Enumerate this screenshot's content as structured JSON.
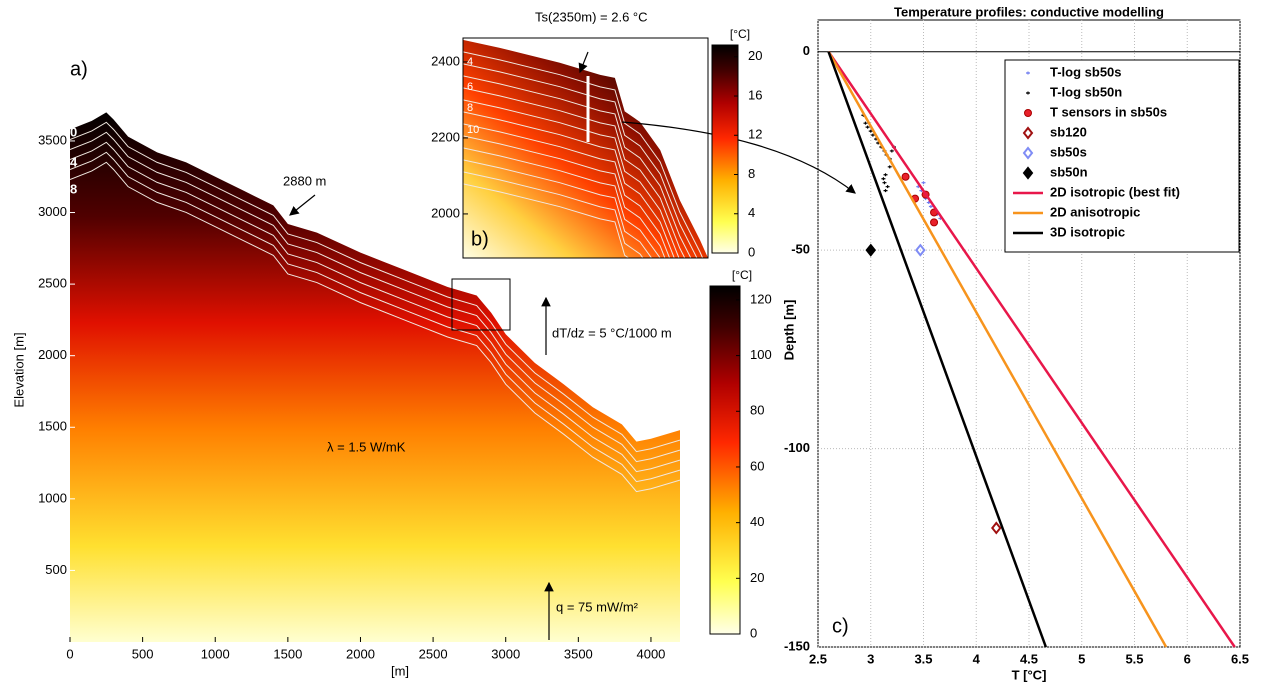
{
  "chart_data": [
    {
      "type": "heatmap",
      "label": "a)",
      "xlabel": "[m]",
      "ylabel": "Elevation [m]",
      "xlim": [
        0,
        4200
      ],
      "ylim": [
        0,
        3800
      ],
      "xticks": [
        0,
        500,
        1000,
        1500,
        2000,
        2500,
        3000,
        3500,
        4000
      ],
      "yticks": [
        500,
        1000,
        1500,
        2000,
        2500,
        3000,
        3500
      ],
      "surface": {
        "x": [
          0,
          150,
          250,
          300,
          400,
          600,
          800,
          1000,
          1200,
          1400,
          1500,
          1700,
          2000,
          2300,
          2600,
          2800,
          2900,
          3000,
          3200,
          3400,
          3600,
          3800,
          3900,
          4000,
          4200
        ],
        "y": [
          3580,
          3640,
          3700,
          3650,
          3530,
          3420,
          3350,
          3250,
          3150,
          3050,
          2920,
          2860,
          2720,
          2600,
          2480,
          2420,
          2300,
          2150,
          1950,
          1800,
          1640,
          1520,
          1400,
          1420,
          1480
        ]
      },
      "isotherm_labels": [
        "0",
        "4",
        "8"
      ],
      "annotations": [
        "2880 m",
        "dT/dz  = 5 °C/1000 m",
        "λ = 1.5 W/mK",
        "q = 75 mW/m²"
      ],
      "colorbar": {
        "unit": "[°C]",
        "lim": [
          0,
          125
        ],
        "ticks": [
          0,
          20,
          40,
          60,
          80,
          100,
          120
        ]
      }
    },
    {
      "type": "heatmap",
      "label": "b)",
      "xlim": [
        2600,
        3000
      ],
      "ylim": [
        1884,
        2463
      ],
      "yticks": [
        2000,
        2200,
        2400
      ],
      "surface": {
        "x": [
          2600,
          2660,
          2758,
          2824,
          2848,
          2864,
          2889,
          2922,
          2954,
          2987,
          3000
        ],
        "y": [
          2458,
          2437,
          2398,
          2366,
          2358,
          2270,
          2242,
          2168,
          2036,
          1931,
          1884
        ]
      },
      "isotherm_labels": [
        "4",
        "6",
        "8",
        "10"
      ],
      "annotations": [
        "Ts(2350m) = 2.6 °C"
      ],
      "colorbar": {
        "unit": "[°C]",
        "lim": [
          0,
          21.2
        ],
        "ticks": [
          0,
          4,
          8,
          12,
          16,
          20
        ]
      }
    },
    {
      "type": "line",
      "title": "Temperature profiles: conductive modelling",
      "label": "c)",
      "xlabel": "T [°C]",
      "ylabel": "Depth [m]",
      "xlim": [
        2.5,
        6.5
      ],
      "ylim": [
        -150,
        8
      ],
      "xticks": [
        2.5,
        3,
        3.5,
        4,
        4.5,
        5,
        5.5,
        6,
        6.5
      ],
      "yticks": [
        0,
        -50,
        -100,
        -150
      ],
      "grid": true,
      "legend": "upper right",
      "series": [
        {
          "name": "T-log sb50s",
          "color": "#6f7cf0",
          "style": "dot",
          "x": [
            3.45,
            3.48,
            3.5,
            3.52,
            3.55,
            3.57,
            3.6,
            3.63,
            3.66,
            3.5
          ],
          "values": [
            -34,
            -35,
            -36,
            -37,
            -38,
            -39,
            -40,
            -41,
            -42,
            -33
          ]
        },
        {
          "name": "T-log sb50n",
          "color": "#000000",
          "style": "dot",
          "x": [
            2.93,
            2.95,
            2.97,
            3.0,
            3.02,
            3.05,
            3.07,
            3.1,
            3.13,
            3.15,
            3.18,
            3.2,
            3.22,
            3.18,
            3.14,
            3.12,
            3.13,
            3.16,
            3.14
          ],
          "values": [
            -16,
            -18,
            -19,
            -20,
            -21,
            -22,
            -23,
            -24,
            -25,
            -26,
            -27,
            -25,
            -24,
            -29,
            -31,
            -32,
            -33,
            -34,
            -35
          ]
        },
        {
          "name": "T sensors in sb50s",
          "color": "#e8202a",
          "style": "circle",
          "x": [
            3.33,
            3.42,
            3.52,
            3.6,
            3.6
          ],
          "values": [
            -31.5,
            -37,
            -36,
            -40.5,
            -43
          ]
        },
        {
          "name": "sb120",
          "color": "#a01010",
          "style": "diamond",
          "x": [
            4.19
          ],
          "values": [
            -120
          ]
        },
        {
          "name": "sb50s",
          "color": "#7f8cf5",
          "style": "diamond",
          "x": [
            3.47
          ],
          "values": [
            -50
          ]
        },
        {
          "name": "sb50n",
          "color": "#000000",
          "style": "filled-diamond",
          "x": [
            3.0
          ],
          "values": [
            -50
          ]
        },
        {
          "name": "2D isotropic (best fit)",
          "color": "#e8174a",
          "style": "line",
          "x": [
            2.6,
            6.45
          ],
          "values": [
            0,
            -150
          ]
        },
        {
          "name": "2D anisotropic",
          "color": "#f7941d",
          "style": "line",
          "x": [
            2.6,
            5.8
          ],
          "values": [
            0,
            -150
          ]
        },
        {
          "name": "3D isotropic",
          "color": "#000000",
          "style": "line",
          "x": [
            2.6,
            4.66
          ],
          "values": [
            0,
            -150
          ]
        }
      ]
    }
  ]
}
